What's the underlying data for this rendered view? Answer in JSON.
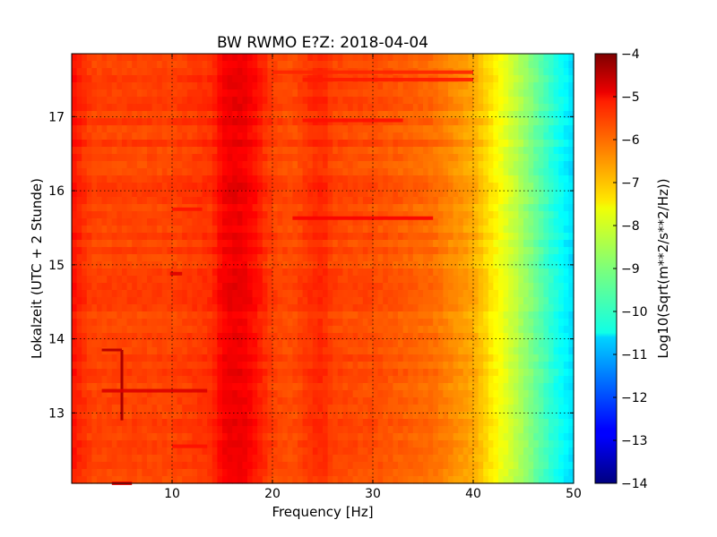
{
  "chart_data": {
    "type": "heatmap",
    "title": "BW RWMO E?Z: 2018-04-04",
    "xlabel": "Frequency [Hz]",
    "ylabel": "Lokalzeit (UTC + 2 Stunde)",
    "colorbar_label": "Log10(Sqrt(m**2/s**2/Hz))",
    "xlim": [
      0,
      50
    ],
    "ylim": [
      17.85,
      12.05
    ],
    "x_ticks": [
      10,
      20,
      30,
      40,
      50
    ],
    "x_tick_labels": [
      "10",
      "20",
      "30",
      "40",
      "50"
    ],
    "y_ticks": [
      13,
      14,
      15,
      16,
      17
    ],
    "y_tick_labels": [
      "13",
      "14",
      "15",
      "16",
      "17"
    ],
    "colorbar_range": [
      -14,
      -4
    ],
    "colorbar_ticks": [
      -4,
      -5,
      -6,
      -7,
      -8,
      -9,
      -10,
      -11,
      -12,
      -13,
      -14
    ],
    "colorbar_tick_labels": [
      "−4",
      "−5",
      "−6",
      "−7",
      "−8",
      "−9",
      "−10",
      "−11",
      "−12",
      "−13",
      "−14"
    ],
    "colormap": "jet",
    "grid": true,
    "frequency_profile": {
      "x": [
        0,
        2,
        5,
        10,
        14,
        15,
        16,
        17,
        18,
        19,
        20,
        22,
        24,
        25,
        26,
        30,
        36,
        40,
        42,
        44,
        46,
        48,
        50
      ],
      "value": [
        -5.4,
        -5.9,
        -5.9,
        -5.9,
        -5.7,
        -5.2,
        -5.1,
        -5.1,
        -5.3,
        -5.6,
        -5.9,
        -6.0,
        -5.7,
        -5.6,
        -5.9,
        -6.0,
        -6.3,
        -6.9,
        -7.6,
        -8.3,
        -9.1,
        -9.9,
        -10.6
      ]
    },
    "features": [
      {
        "kind": "line",
        "x": [
          5,
          5
        ],
        "y": [
          12.9,
          13.85
        ],
        "value": -4.4
      },
      {
        "kind": "line",
        "x": [
          3,
          5
        ],
        "y": [
          13.85,
          13.85
        ],
        "value": -4.6
      },
      {
        "kind": "band",
        "x": [
          3,
          13.5
        ],
        "y": 13.3,
        "value": -4.9
      },
      {
        "kind": "band",
        "x": [
          22,
          36
        ],
        "y": 15.63,
        "value": -5.2
      },
      {
        "kind": "band",
        "x": [
          23,
          33
        ],
        "y": 16.95,
        "value": -5.4
      },
      {
        "kind": "band",
        "x": [
          23,
          40
        ],
        "y": 17.5,
        "value": -5.5
      },
      {
        "kind": "band",
        "x": [
          20,
          40
        ],
        "y": 17.6,
        "value": -5.6
      },
      {
        "kind": "band",
        "x": [
          10,
          13.5
        ],
        "y": 12.55,
        "value": -5.4
      },
      {
        "kind": "band",
        "x": [
          9.8,
          11
        ],
        "y": 14.88,
        "value": -4.9
      },
      {
        "kind": "band",
        "x": [
          10,
          13
        ],
        "y": 15.75,
        "value": -5.4
      },
      {
        "kind": "band",
        "x": [
          4,
          6
        ],
        "y": 12.05,
        "value": -5.0
      }
    ]
  }
}
